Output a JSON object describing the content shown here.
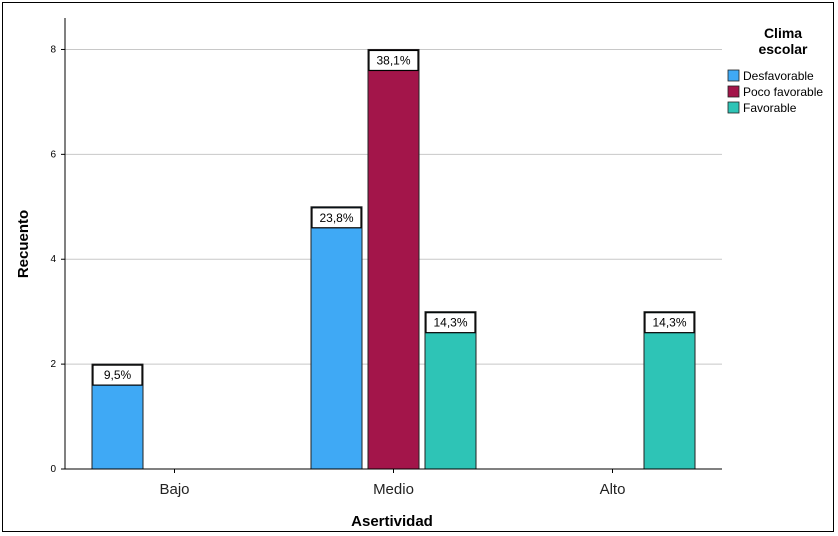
{
  "chart_data": {
    "type": "bar",
    "title": "",
    "xlabel": "Asertividad",
    "ylabel": "Recuento",
    "categories": [
      "Bajo",
      "Medio",
      "Alto"
    ],
    "ylim": [
      0,
      8.6
    ],
    "yticks": [
      0,
      2,
      4,
      6,
      8
    ],
    "grid": true,
    "legend": {
      "title_line1": "Clima",
      "title_line2": "escolar",
      "position": "top-right"
    },
    "series": [
      {
        "name": "Desfavorable",
        "color": "#3fa9f5",
        "values": [
          2,
          5,
          null
        ],
        "labels": [
          "9,5%",
          "23,8%",
          ""
        ]
      },
      {
        "name": "Poco favorable",
        "color": "#a3154a",
        "values": [
          null,
          8,
          null
        ],
        "labels": [
          "",
          "38,1%",
          ""
        ]
      },
      {
        "name": "Favorable",
        "color": "#2ec4b6",
        "values": [
          null,
          3,
          3
        ],
        "labels": [
          "",
          "14,3%",
          "14,3%"
        ]
      }
    ]
  }
}
